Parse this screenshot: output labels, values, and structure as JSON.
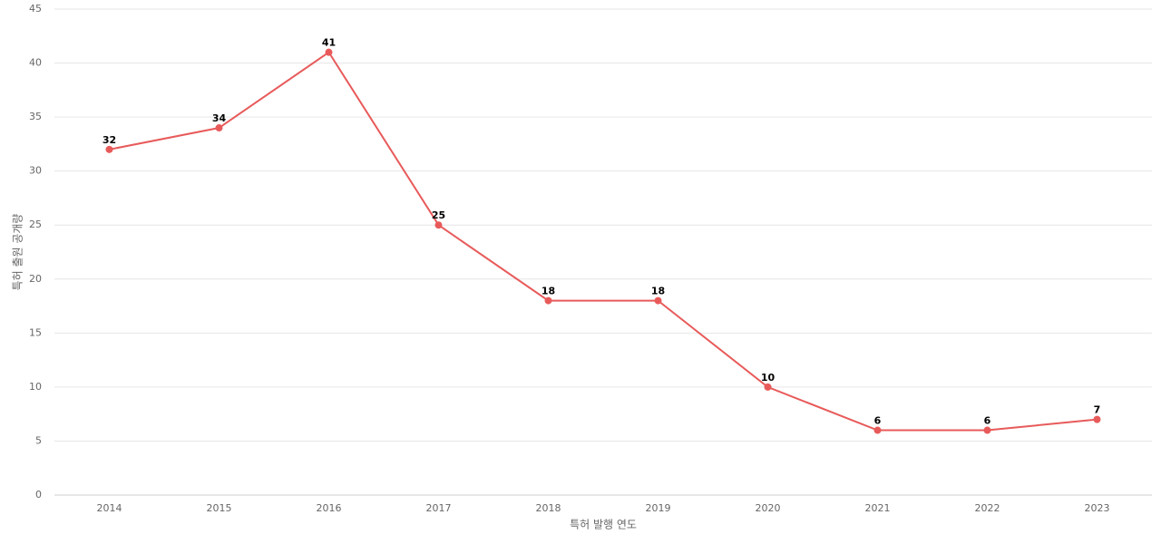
{
  "chart_data": {
    "type": "line",
    "x_label": "특허 발행 연도",
    "y_label": "특허 출원 공개량",
    "categories": [
      "2014",
      "2015",
      "2016",
      "2017",
      "2018",
      "2019",
      "2020",
      "2021",
      "2022",
      "2023"
    ],
    "values": [
      32,
      34,
      41,
      25,
      18,
      18,
      10,
      6,
      6,
      7
    ],
    "color": "#e85a5a",
    "ylim": [
      0,
      45
    ],
    "yticks": [
      0,
      5,
      10,
      15,
      20,
      25,
      30,
      35,
      40,
      45
    ],
    "grid": true
  }
}
